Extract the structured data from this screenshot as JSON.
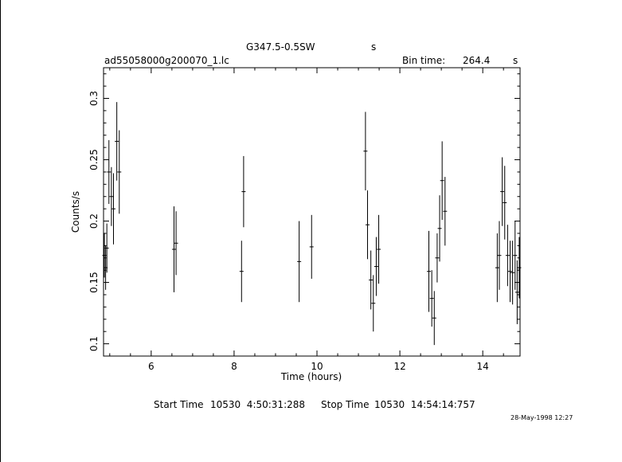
{
  "header": {
    "source_title": "G347.5-0.5SW",
    "source_unit": "s",
    "file_name": "ad55058000g200070_1.lc",
    "bin_label": "Bin time:",
    "bin_value": "264.4",
    "bin_unit": "s"
  },
  "footer": {
    "start_label": "Start Time",
    "start_value": "10530  4:50:31:288",
    "stop_label": "Stop Time",
    "stop_value": "10530  14:54:14:757",
    "date_stamp": "28-May-1998 12:27"
  },
  "chart_data": {
    "type": "scatter",
    "xlabel": "Time (hours)",
    "ylabel": "Counts/s",
    "xlim": [
      4.85,
      14.9
    ],
    "ylim": [
      0.09,
      0.325
    ],
    "xticks": [
      6,
      8,
      10,
      12,
      14
    ],
    "yticks": [
      0.1,
      0.15,
      0.2,
      0.25,
      0.3
    ],
    "grid": false,
    "series": [
      {
        "points": [
          {
            "x": 4.87,
            "y": 0.172,
            "err": 0.018
          },
          {
            "x": 4.9,
            "y": 0.162,
            "err": 0.018
          },
          {
            "x": 4.93,
            "y": 0.178,
            "err": 0.02
          },
          {
            "x": 4.98,
            "y": 0.24,
            "err": 0.026
          },
          {
            "x": 5.04,
            "y": 0.22,
            "err": 0.024
          },
          {
            "x": 5.09,
            "y": 0.21,
            "err": 0.029
          },
          {
            "x": 5.17,
            "y": 0.265,
            "err": 0.032
          },
          {
            "x": 5.23,
            "y": 0.24,
            "err": 0.034
          },
          {
            "x": 6.55,
            "y": 0.177,
            "err": 0.035
          },
          {
            "x": 6.6,
            "y": 0.182,
            "err": 0.026
          },
          {
            "x": 8.18,
            "y": 0.159,
            "err": 0.025
          },
          {
            "x": 8.23,
            "y": 0.224,
            "err": 0.029
          },
          {
            "x": 9.57,
            "y": 0.167,
            "err": 0.033
          },
          {
            "x": 9.87,
            "y": 0.179,
            "err": 0.026
          },
          {
            "x": 11.17,
            "y": 0.257,
            "err": 0.032
          },
          {
            "x": 11.22,
            "y": 0.197,
            "err": 0.028
          },
          {
            "x": 11.3,
            "y": 0.152,
            "err": 0.024
          },
          {
            "x": 11.36,
            "y": 0.133,
            "err": 0.023
          },
          {
            "x": 11.43,
            "y": 0.163,
            "err": 0.024
          },
          {
            "x": 11.49,
            "y": 0.177,
            "err": 0.028
          },
          {
            "x": 12.7,
            "y": 0.159,
            "err": 0.033
          },
          {
            "x": 12.77,
            "y": 0.137,
            "err": 0.023
          },
          {
            "x": 12.83,
            "y": 0.121,
            "err": 0.022
          },
          {
            "x": 12.9,
            "y": 0.17,
            "err": 0.02
          },
          {
            "x": 12.96,
            "y": 0.194,
            "err": 0.027
          },
          {
            "x": 13.02,
            "y": 0.233,
            "err": 0.032
          },
          {
            "x": 13.09,
            "y": 0.208,
            "err": 0.028
          },
          {
            "x": 14.35,
            "y": 0.162,
            "err": 0.028
          },
          {
            "x": 14.4,
            "y": 0.172,
            "err": 0.028
          },
          {
            "x": 14.47,
            "y": 0.224,
            "err": 0.028
          },
          {
            "x": 14.53,
            "y": 0.215,
            "err": 0.03
          },
          {
            "x": 14.6,
            "y": 0.172,
            "err": 0.025
          },
          {
            "x": 14.66,
            "y": 0.159,
            "err": 0.025
          },
          {
            "x": 14.72,
            "y": 0.158,
            "err": 0.026
          },
          {
            "x": 14.78,
            "y": 0.172,
            "err": 0.028
          },
          {
            "x": 14.83,
            "y": 0.142,
            "err": 0.026
          },
          {
            "x": 14.88,
            "y": 0.162,
            "err": 0.025
          }
        ]
      }
    ]
  }
}
